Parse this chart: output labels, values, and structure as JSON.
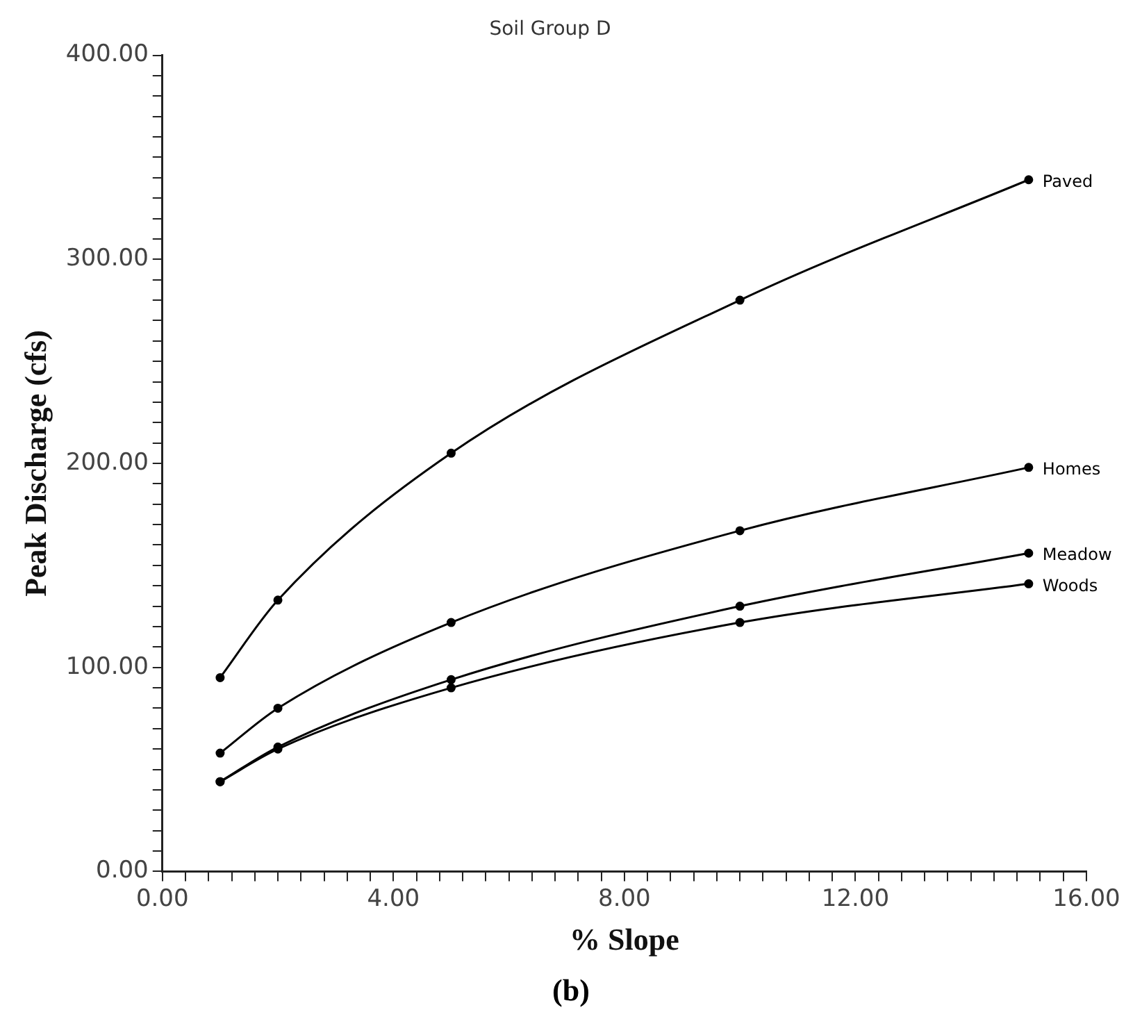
{
  "chart_data": {
    "type": "line",
    "title": "Soil Group D",
    "xlabel": "% Slope",
    "ylabel": "Peak Discharge (cfs)",
    "annotations": [
      "(b)"
    ],
    "x": [
      1,
      2,
      5,
      10,
      15
    ],
    "series": [
      {
        "name": "Paved",
        "color": "#000000",
        "values": [
          95,
          133,
          205,
          280,
          339
        ]
      },
      {
        "name": "Homes",
        "color": "#000000",
        "values": [
          58,
          80,
          122,
          167,
          198
        ]
      },
      {
        "name": "Meadow",
        "color": "#000000",
        "values": [
          44,
          61,
          94,
          130,
          156
        ]
      },
      {
        "name": "Woods",
        "color": "#000000",
        "values": [
          44,
          60,
          90,
          122,
          141
        ]
      }
    ],
    "xlim": [
      0,
      16
    ],
    "xticks": [
      {
        "value": 0,
        "label": "0.00"
      },
      {
        "value": 0.4,
        "label": null
      },
      {
        "value": 0.8,
        "label": null
      },
      {
        "value": 1.2,
        "label": null
      },
      {
        "value": 1.6,
        "label": null
      },
      {
        "value": 2,
        "label": null
      },
      {
        "value": 2.4,
        "label": null
      },
      {
        "value": 2.8,
        "label": null
      },
      {
        "value": 3.2,
        "label": null
      },
      {
        "value": 3.6,
        "label": null
      },
      {
        "value": 4,
        "label": "4.00"
      },
      {
        "value": 4.4,
        "label": null
      },
      {
        "value": 4.8,
        "label": null
      },
      {
        "value": 5.2,
        "label": null
      },
      {
        "value": 5.6,
        "label": null
      },
      {
        "value": 6,
        "label": null
      },
      {
        "value": 6.4,
        "label": null
      },
      {
        "value": 6.8,
        "label": null
      },
      {
        "value": 7.2,
        "label": null
      },
      {
        "value": 7.6,
        "label": null
      },
      {
        "value": 8,
        "label": "8.00"
      },
      {
        "value": 8.4,
        "label": null
      },
      {
        "value": 8.8,
        "label": null
      },
      {
        "value": 9.2,
        "label": null
      },
      {
        "value": 9.6,
        "label": null
      },
      {
        "value": 10,
        "label": null
      },
      {
        "value": 10.4,
        "label": null
      },
      {
        "value": 10.8,
        "label": null
      },
      {
        "value": 11.2,
        "label": null
      },
      {
        "value": 11.6,
        "label": null
      },
      {
        "value": 12,
        "label": "12.00"
      },
      {
        "value": 12.4,
        "label": null
      },
      {
        "value": 12.8,
        "label": null
      },
      {
        "value": 13.2,
        "label": null
      },
      {
        "value": 13.6,
        "label": null
      },
      {
        "value": 14,
        "label": null
      },
      {
        "value": 14.4,
        "label": null
      },
      {
        "value": 14.8,
        "label": null
      },
      {
        "value": 15.2,
        "label": null
      },
      {
        "value": 15.6,
        "label": null
      },
      {
        "value": 16,
        "label": "16.00"
      }
    ],
    "ylim": [
      0,
      400
    ],
    "yticks": [
      {
        "value": 0,
        "label": "0.00"
      },
      {
        "value": 10,
        "label": null
      },
      {
        "value": 20,
        "label": null
      },
      {
        "value": 30,
        "label": null
      },
      {
        "value": 40,
        "label": null
      },
      {
        "value": 50,
        "label": null
      },
      {
        "value": 60,
        "label": null
      },
      {
        "value": 70,
        "label": null
      },
      {
        "value": 80,
        "label": null
      },
      {
        "value": 90,
        "label": null
      },
      {
        "value": 100,
        "label": "100.00"
      },
      {
        "value": 110,
        "label": null
      },
      {
        "value": 120,
        "label": null
      },
      {
        "value": 130,
        "label": null
      },
      {
        "value": 140,
        "label": null
      },
      {
        "value": 150,
        "label": null
      },
      {
        "value": 160,
        "label": null
      },
      {
        "value": 170,
        "label": null
      },
      {
        "value": 180,
        "label": null
      },
      {
        "value": 190,
        "label": null
      },
      {
        "value": 200,
        "label": "200.00"
      },
      {
        "value": 210,
        "label": null
      },
      {
        "value": 220,
        "label": null
      },
      {
        "value": 230,
        "label": null
      },
      {
        "value": 240,
        "label": null
      },
      {
        "value": 250,
        "label": null
      },
      {
        "value": 260,
        "label": null
      },
      {
        "value": 270,
        "label": null
      },
      {
        "value": 280,
        "label": null
      },
      {
        "value": 290,
        "label": null
      },
      {
        "value": 300,
        "label": "300.00"
      },
      {
        "value": 310,
        "label": null
      },
      {
        "value": 320,
        "label": null
      },
      {
        "value": 330,
        "label": null
      },
      {
        "value": 340,
        "label": null
      },
      {
        "value": 350,
        "label": null
      },
      {
        "value": 360,
        "label": null
      },
      {
        "value": 370,
        "label": null
      },
      {
        "value": 380,
        "label": null
      },
      {
        "value": 390,
        "label": null
      },
      {
        "value": 400,
        "label": "400.00"
      }
    ],
    "grid": false,
    "legend": false,
    "marker": "circle",
    "line_style": "solid"
  }
}
